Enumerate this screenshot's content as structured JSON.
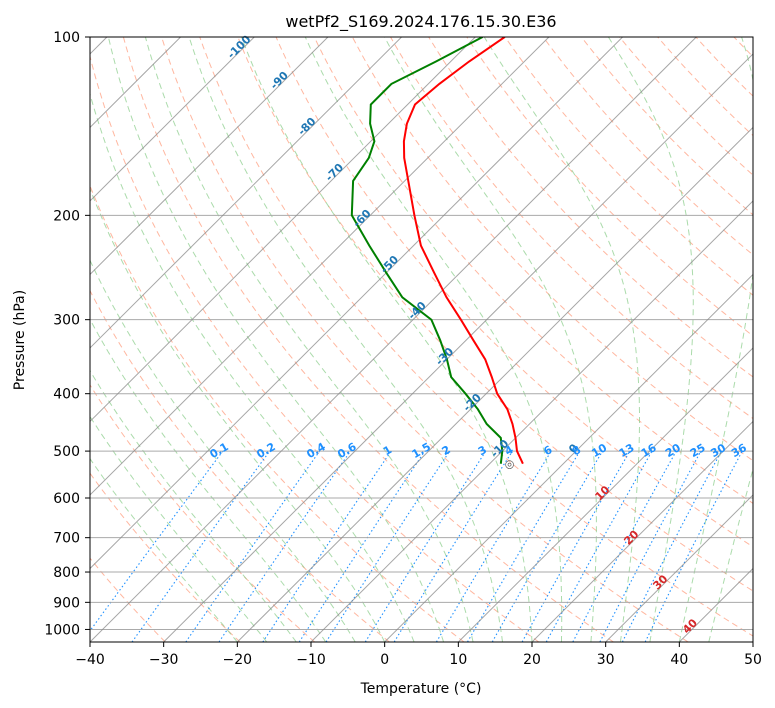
{
  "chart_data": {
    "type": "line",
    "subtype": "skew-t log-p diagram",
    "title": "wetPf2_S169.2024.176.15.30.E36",
    "xlabel": "Temperature (°C)",
    "ylabel": "Pressure (hPa)",
    "xlim": [
      -40,
      50
    ],
    "ylim": [
      1050,
      100
    ],
    "y_scale": "log",
    "x_ticks": [
      -40,
      -30,
      -20,
      -10,
      0,
      10,
      20,
      30,
      40,
      50
    ],
    "y_ticks": [
      1000,
      900,
      800,
      700,
      600,
      500,
      400,
      300,
      200,
      100
    ],
    "grid": true,
    "isotherm_labels": [
      "-100",
      "-90",
      "-80",
      "-70",
      "-60",
      "-50",
      "-40",
      "-30",
      "-20",
      "-10",
      "0",
      "10",
      "20",
      "30",
      "40"
    ],
    "mixing_ratio_labels": [
      "0.1",
      "0.2",
      "0.4",
      "0.6",
      "1",
      "1.5",
      "2",
      "3",
      "4",
      "6",
      "8",
      "10",
      "13",
      "16",
      "20",
      "25",
      "30",
      "36"
    ],
    "colors": {
      "temperature": "#ff0000",
      "dewpoint": "#008000",
      "isotherm": "#888888",
      "dry_adiabat": "#ff9977",
      "moist_adiabat": "#88cc88",
      "mixing_ratio": "#1e90ff",
      "isotherm_label_cold": "#1f77b4",
      "isotherm_label_warm": "#d62728"
    },
    "series": [
      {
        "name": "",
        "role": "temperature",
        "pressure": [
          525,
          500,
          475,
          450,
          425,
          400,
          375,
          350,
          325,
          300,
          275,
          250,
          225,
          200,
          175,
          160,
          150,
          140,
          130,
          120,
          110,
          100
        ],
        "values": [
          -5.5,
          -8.0,
          -10.0,
          -12.3,
          -15.0,
          -18.5,
          -21.5,
          -24.8,
          -29.0,
          -33.5,
          -38.5,
          -43.5,
          -49.0,
          -54.0,
          -59.5,
          -63.2,
          -65.5,
          -67.5,
          -69.0,
          -68.5,
          -67.5,
          -66.0
        ]
      },
      {
        "name": "",
        "role": "dewpoint",
        "pressure": [
          525,
          500,
          475,
          450,
          425,
          400,
          375,
          350,
          325,
          300,
          275,
          250,
          225,
          200,
          175,
          160,
          150,
          140,
          130,
          120,
          110,
          100
        ],
        "values": [
          -8.5,
          -10.0,
          -12.0,
          -15.8,
          -19.0,
          -22.8,
          -27.0,
          -30.0,
          -33.5,
          -37.5,
          -44.5,
          -50.0,
          -56.0,
          -62.5,
          -67.0,
          -68.0,
          -69.5,
          -72.5,
          -75.0,
          -75.0,
          -72.0,
          -69.0
        ]
      }
    ],
    "annotations": [
      {
        "text": "◎",
        "pressure": 525,
        "temperature": -8.5
      }
    ]
  }
}
